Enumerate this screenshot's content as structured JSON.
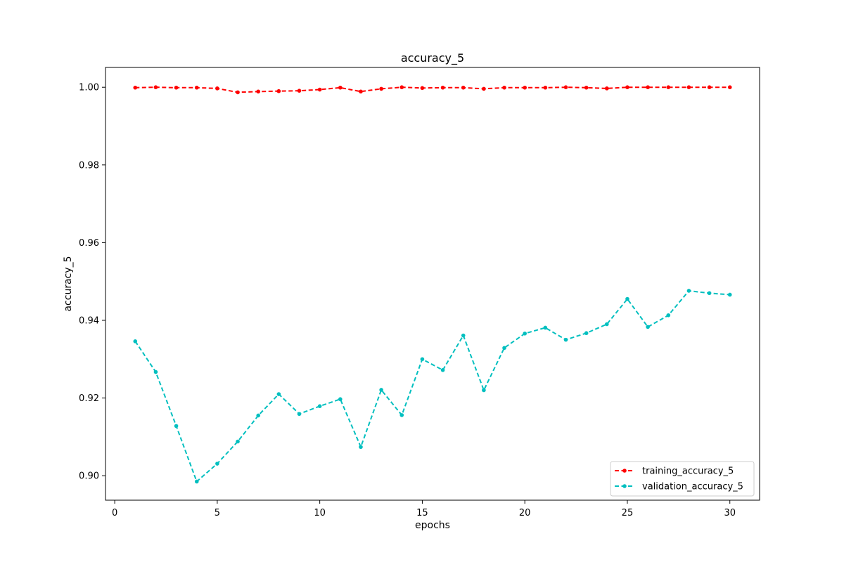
{
  "chart_data": {
    "type": "line",
    "title": "accuracy_5",
    "xlabel": "epochs",
    "ylabel": "accuracy_5",
    "xlim": [
      -0.45,
      31.45
    ],
    "ylim": [
      0.8937,
      1.0051
    ],
    "xticks": [
      0,
      5,
      10,
      15,
      20,
      25,
      30
    ],
    "yticks": [
      0.9,
      0.92,
      0.94,
      0.96,
      0.98,
      1.0
    ],
    "xtick_labels": [
      "0",
      "5",
      "10",
      "15",
      "20",
      "25",
      "30"
    ],
    "ytick_labels": [
      "0.90",
      "0.92",
      "0.94",
      "0.96",
      "0.98",
      "1.00"
    ],
    "grid": false,
    "legend_position": "lower-right",
    "x": [
      1,
      2,
      3,
      4,
      5,
      6,
      7,
      8,
      9,
      10,
      11,
      12,
      13,
      14,
      15,
      16,
      17,
      18,
      19,
      20,
      21,
      22,
      23,
      24,
      25,
      26,
      27,
      28,
      29,
      30
    ],
    "series": [
      {
        "name": "training_accuracy_5",
        "color": "#ff0000",
        "values": [
          0.9999,
          1.0,
          0.9999,
          0.9999,
          0.9997,
          0.9987,
          0.9989,
          0.999,
          0.9991,
          0.9994,
          0.9999,
          0.9989,
          0.9996,
          1.0,
          0.9998,
          0.9999,
          0.9999,
          0.9996,
          0.9999,
          0.9999,
          0.9999,
          1.0,
          0.9999,
          0.9997,
          1.0,
          1.0,
          1.0,
          1.0,
          1.0,
          1.0
        ]
      },
      {
        "name": "validation_accuracy_5",
        "color": "#00bfbf",
        "values": [
          0.9346,
          0.9267,
          0.9128,
          0.8985,
          0.9031,
          0.9088,
          0.9155,
          0.921,
          0.9159,
          0.9179,
          0.9197,
          0.9074,
          0.9221,
          0.9156,
          0.93,
          0.9272,
          0.9361,
          0.922,
          0.9329,
          0.9366,
          0.9381,
          0.935,
          0.9367,
          0.939,
          0.9455,
          0.9383,
          0.9413,
          0.9476,
          0.947,
          0.9466
        ]
      }
    ]
  }
}
